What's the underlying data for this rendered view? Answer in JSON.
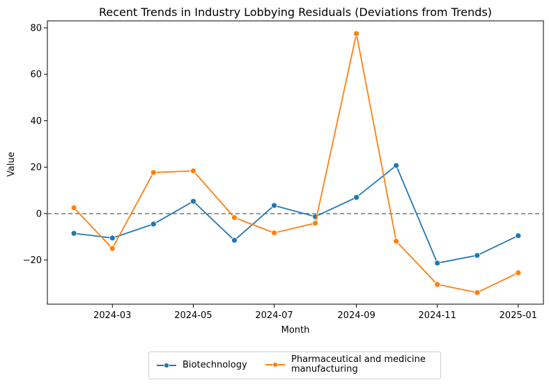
{
  "chart_data": {
    "type": "line",
    "title": "Recent Trends in Industry Lobbying Residuals (Deviations from Trends)",
    "xlabel": "Month",
    "ylabel": "Value",
    "x_ticks": [
      "2024-03",
      "2024-05",
      "2024-07",
      "2024-09",
      "2024-11",
      "2025-01"
    ],
    "y_ticks": [
      -20,
      0,
      20,
      40,
      60,
      80
    ],
    "y_tick_labels": [
      "−20",
      "0",
      "20",
      "40",
      "60",
      "80"
    ],
    "ylim": [
      -39,
      83
    ],
    "xlim": [
      "2024-01-12",
      "2025-01-20"
    ],
    "reference_line": {
      "y": 0,
      "style": "dashed",
      "color": "#808080"
    },
    "x": [
      "2024-02-01",
      "2024-03-01",
      "2024-04-01",
      "2024-05-01",
      "2024-06-01",
      "2024-07-01",
      "2024-08-01",
      "2024-09-01",
      "2024-10-01",
      "2024-11-01",
      "2024-12-01",
      "2025-01-01"
    ],
    "series": [
      {
        "name": "Biotechnology",
        "color": "#1f77b4",
        "values": [
          -8.5,
          -10.5,
          -4.5,
          5.3,
          -11.5,
          3.5,
          -1.3,
          7.0,
          20.7,
          -21.3,
          -18.0,
          -9.5
        ]
      },
      {
        "name": "Pharmaceutical and medicine\nmanufacturing",
        "color": "#ff7f0e",
        "values": [
          2.5,
          -15.0,
          17.7,
          18.4,
          -1.7,
          -8.3,
          -4.1,
          77.5,
          -11.9,
          -30.5,
          -34.0,
          -25.5
        ]
      }
    ],
    "legend_position": "bottom-center",
    "grid": false
  }
}
